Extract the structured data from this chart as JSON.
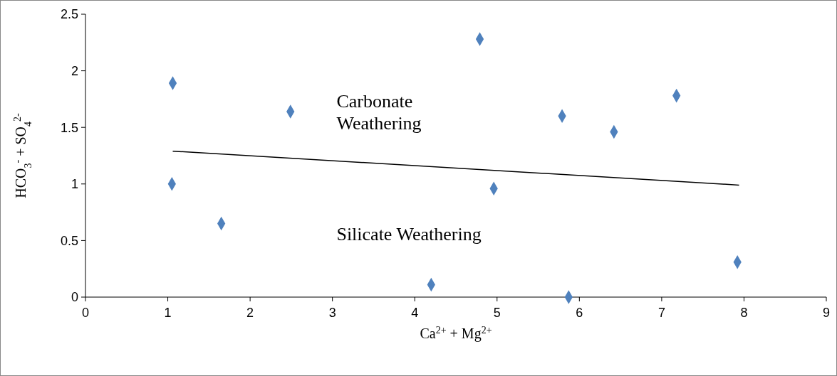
{
  "chart_data": {
    "type": "scatter",
    "xlabel": "Ca$^{2+}$ + Mg$^{2+}$",
    "ylabel": "HCO$_{3}$$^{-}$ + SO$_{4}$$^{2-}$",
    "xlim": [
      0,
      9
    ],
    "xticks": [
      0,
      1,
      2,
      3,
      4,
      5,
      6,
      7,
      8,
      9
    ],
    "ylim": [
      0,
      2.5
    ],
    "yticks": [
      0,
      0.5,
      1,
      1.5,
      2,
      2.5
    ],
    "grid": false,
    "annotations": [
      "Carbonate Weathering",
      "Silicate Weathering"
    ],
    "series": [
      {
        "color": "#4f81bd",
        "marker": "diamond",
        "x": [
          1.06,
          1.05,
          1.65,
          2.49,
          4.2,
          4.79,
          4.96,
          5.79,
          5.87,
          6.42,
          7.18,
          7.92
        ],
        "values": [
          1.89,
          1.0,
          0.65,
          1.64,
          0.11,
          2.28,
          0.96,
          1.6,
          0.0,
          1.46,
          1.78,
          0.31
        ]
      },
      {
        "type": "line",
        "color": "#000000",
        "marker": "none",
        "line_style": "solid",
        "x": [
          1.06,
          7.94
        ],
        "values": [
          1.29,
          0.99
        ]
      }
    ]
  }
}
